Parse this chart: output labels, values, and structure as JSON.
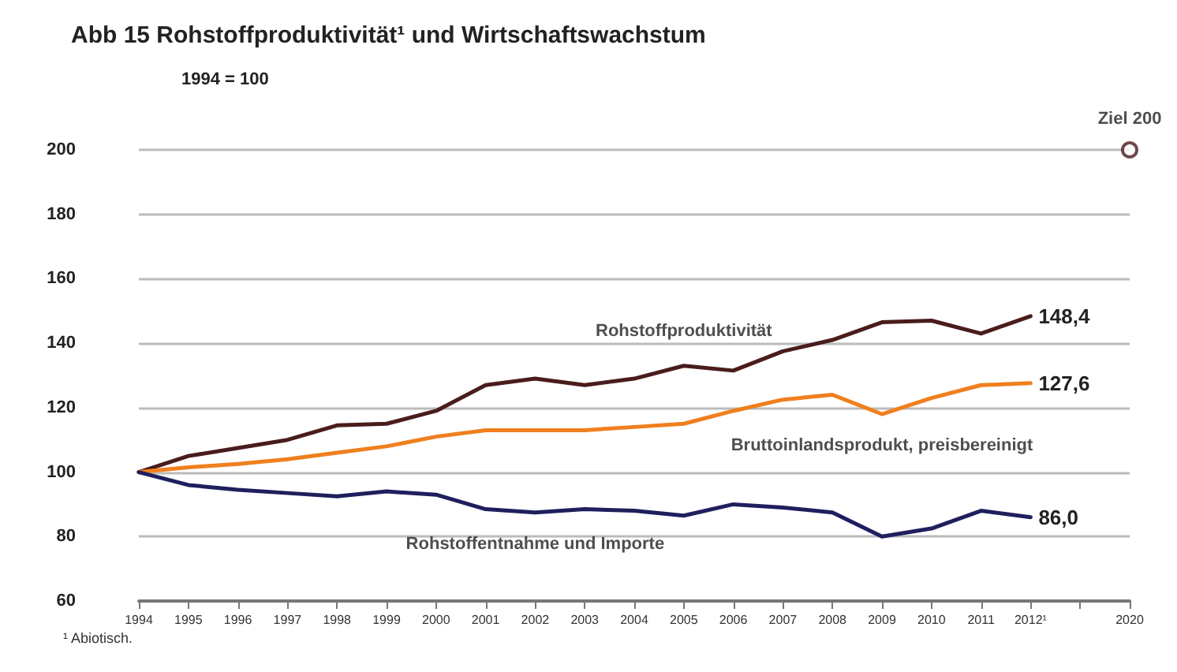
{
  "chart_data": {
    "type": "line",
    "title": "Abb 15 Rohstoffproduktivität¹ und Wirtschaftswachstum",
    "subtitle": "1994 = 100",
    "categories": [
      "1994",
      "1995",
      "1996",
      "1997",
      "1998",
      "1999",
      "2000",
      "2001",
      "2002",
      "2003",
      "2004",
      "2005",
      "2006",
      "2007",
      "2008",
      "2009",
      "2010",
      "2011",
      "2012¹",
      null,
      "2020"
    ],
    "series": [
      {
        "name": "Rohstoffproduktivität",
        "color": "#4a1c1c",
        "values": [
          100,
          105,
          107.5,
          110,
          114.5,
          115,
          119,
          127,
          129,
          127,
          129,
          133,
          131.5,
          137.5,
          141,
          146.5,
          147,
          143,
          148.4,
          null,
          null
        ],
        "value_labels": [
          null,
          null,
          null,
          null,
          null,
          null,
          null,
          null,
          null,
          null,
          null,
          null,
          null,
          null,
          null,
          null,
          null,
          null,
          "148,4",
          null,
          null
        ]
      },
      {
        "name": "Bruttoinlandsprodukt, preisbereinigt",
        "color": "#f07f1e",
        "values": [
          100,
          101.5,
          102.5,
          104,
          106,
          108,
          111,
          113,
          113,
          113,
          114,
          115,
          119,
          122.5,
          124,
          118,
          123,
          127,
          127.6,
          null,
          null
        ],
        "value_labels": [
          null,
          null,
          null,
          null,
          null,
          null,
          null,
          null,
          null,
          null,
          null,
          null,
          null,
          null,
          null,
          null,
          null,
          null,
          "127,6",
          null,
          null
        ]
      },
      {
        "name": "Rohstoffentnahme und Importe",
        "color": "#1f1f5e",
        "values": [
          100,
          96,
          94.5,
          93.5,
          92.5,
          94,
          93,
          88.5,
          87.5,
          88.5,
          88,
          86.5,
          90,
          89,
          87.5,
          80,
          82.5,
          88,
          86.0,
          null,
          null
        ],
        "value_labels": [
          null,
          null,
          null,
          null,
          null,
          null,
          null,
          null,
          null,
          null,
          null,
          null,
          null,
          null,
          null,
          null,
          null,
          null,
          "86,0",
          null,
          null
        ]
      },
      {
        "type": "scatter",
        "color": "#4a1c1c",
        "values": [
          null,
          null,
          null,
          null,
          null,
          null,
          null,
          null,
          null,
          null,
          null,
          null,
          null,
          null,
          null,
          null,
          null,
          null,
          null,
          null,
          200
        ],
        "marker": "circle"
      }
    ],
    "annotations": [
      {
        "text": "Ziel 200",
        "x": "2020",
        "y": 200
      },
      "¹ Abiotisch."
    ],
    "ylim": [
      60,
      200
    ],
    "yticks": [
      60,
      80,
      100,
      120,
      140,
      160,
      180,
      200
    ],
    "grid": "y",
    "legend": false,
    "marker": "none",
    "line_style": "solid"
  }
}
